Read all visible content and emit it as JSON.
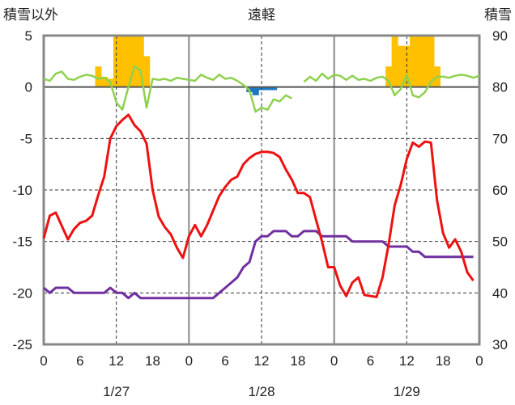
{
  "chart_data": {
    "type": "line",
    "title": "遠軽",
    "left_axis_label": "積雪以外",
    "right_axis_label": "積雪",
    "ylim_left": [
      -25,
      5
    ],
    "yticks_left": [
      5,
      0,
      -5,
      -10,
      -15,
      -20,
      -25
    ],
    "ylim_right": [
      30,
      90
    ],
    "yticks_right": [
      90,
      80,
      70,
      60,
      50,
      40,
      30
    ],
    "xlim_hours": [
      0,
      72
    ],
    "xticks": [
      {
        "h": 0,
        "label": "0"
      },
      {
        "h": 6,
        "label": "6"
      },
      {
        "h": 12,
        "label": "12"
      },
      {
        "h": 18,
        "label": "18"
      },
      {
        "h": 24,
        "label": "0"
      },
      {
        "h": 30,
        "label": "6"
      },
      {
        "h": 36,
        "label": "12"
      },
      {
        "h": 42,
        "label": "18"
      },
      {
        "h": 48,
        "label": "0"
      },
      {
        "h": 54,
        "label": "6"
      },
      {
        "h": 60,
        "label": "12"
      },
      {
        "h": 66,
        "label": "18"
      },
      {
        "h": 72,
        "label": "0"
      }
    ],
    "dates": [
      {
        "h": 12,
        "label": "1/27"
      },
      {
        "h": 36,
        "label": "1/28"
      },
      {
        "h": 60,
        "label": "1/29"
      }
    ],
    "day_lines_hours": [
      24,
      48
    ],
    "noon_lines_hours": [
      12,
      36,
      60
    ],
    "colors": {
      "temperature": "#ee1111",
      "snow_depth": "#7030a0",
      "difference": "#8fd14f",
      "snowfall": "#ffc000",
      "negative_bar": "#1f77c4"
    },
    "temperature": [
      [
        0,
        -14.7
      ],
      [
        1,
        -12.5
      ],
      [
        2,
        -12.2
      ],
      [
        3,
        -13.5
      ],
      [
        4,
        -14.8
      ],
      [
        5,
        -13.8
      ],
      [
        6,
        -13.2
      ],
      [
        7,
        -13
      ],
      [
        8,
        -12.5
      ],
      [
        9,
        -10.5
      ],
      [
        10,
        -8.7
      ],
      [
        11,
        -5
      ],
      [
        12,
        -3.8
      ],
      [
        13,
        -3.2
      ],
      [
        14,
        -2.7
      ],
      [
        15,
        -3.7
      ],
      [
        16,
        -4.3
      ],
      [
        17,
        -5.5
      ],
      [
        18,
        -10
      ],
      [
        19,
        -12.6
      ],
      [
        20,
        -13.6
      ],
      [
        21,
        -14.3
      ],
      [
        22,
        -15.6
      ],
      [
        23,
        -16.6
      ],
      [
        24,
        -14.5
      ],
      [
        25,
        -13.4
      ],
      [
        26,
        -14.5
      ],
      [
        27,
        -13.4
      ],
      [
        28,
        -12
      ],
      [
        29,
        -10.6
      ],
      [
        30,
        -9.7
      ],
      [
        31,
        -9
      ],
      [
        32,
        -8.7
      ],
      [
        33,
        -7.5
      ],
      [
        34,
        -6.9
      ],
      [
        35,
        -6.5
      ],
      [
        36,
        -6.3
      ],
      [
        37,
        -6.3
      ],
      [
        38,
        -6.4
      ],
      [
        39,
        -6.8
      ],
      [
        40,
        -8
      ],
      [
        41,
        -9
      ],
      [
        42,
        -10.3
      ],
      [
        43,
        -10.3
      ],
      [
        44,
        -10.7
      ],
      [
        45,
        -12.9
      ],
      [
        46,
        -15
      ],
      [
        47,
        -17.5
      ],
      [
        48,
        -17.5
      ],
      [
        49,
        -19.3
      ],
      [
        50,
        -20.3
      ],
      [
        51,
        -19
      ],
      [
        52,
        -18.5
      ],
      [
        53,
        -20.2
      ],
      [
        54,
        -20.3
      ],
      [
        55,
        -20.4
      ],
      [
        56,
        -18.5
      ],
      [
        57,
        -15.3
      ],
      [
        58,
        -11.5
      ],
      [
        59,
        -9.5
      ],
      [
        60,
        -7
      ],
      [
        61,
        -5.4
      ],
      [
        62,
        -5.8
      ],
      [
        63,
        -5.3
      ],
      [
        64,
        -5.4
      ],
      [
        65,
        -11
      ],
      [
        66,
        -14.2
      ],
      [
        67,
        -15.6
      ],
      [
        68,
        -14.8
      ],
      [
        69,
        -16
      ],
      [
        70,
        -18
      ],
      [
        71,
        -18.8
      ]
    ],
    "snow_depth": [
      [
        0,
        41
      ],
      [
        1,
        40
      ],
      [
        2,
        41
      ],
      [
        3,
        41
      ],
      [
        4,
        41
      ],
      [
        5,
        40
      ],
      [
        6,
        40
      ],
      [
        7,
        40
      ],
      [
        8,
        40
      ],
      [
        9,
        40
      ],
      [
        10,
        40
      ],
      [
        11,
        41
      ],
      [
        12,
        40
      ],
      [
        13,
        40
      ],
      [
        14,
        39
      ],
      [
        15,
        40
      ],
      [
        16,
        39
      ],
      [
        17,
        39
      ],
      [
        18,
        39
      ],
      [
        19,
        39
      ],
      [
        20,
        39
      ],
      [
        21,
        39
      ],
      [
        22,
        39
      ],
      [
        23,
        39
      ],
      [
        24,
        39
      ],
      [
        25,
        39
      ],
      [
        26,
        39
      ],
      [
        27,
        39
      ],
      [
        28,
        39
      ],
      [
        29,
        40
      ],
      [
        30,
        41
      ],
      [
        31,
        42
      ],
      [
        32,
        43
      ],
      [
        33,
        45
      ],
      [
        34,
        46
      ],
      [
        35,
        50
      ],
      [
        36,
        51
      ],
      [
        37,
        51
      ],
      [
        38,
        52
      ],
      [
        39,
        52
      ],
      [
        40,
        52
      ],
      [
        41,
        51
      ],
      [
        42,
        51
      ],
      [
        43,
        52
      ],
      [
        44,
        52
      ],
      [
        45,
        52
      ],
      [
        46,
        51
      ],
      [
        47,
        51
      ],
      [
        48,
        51
      ],
      [
        49,
        51
      ],
      [
        50,
        51
      ],
      [
        51,
        50
      ],
      [
        52,
        50
      ],
      [
        53,
        50
      ],
      [
        54,
        50
      ],
      [
        55,
        50
      ],
      [
        56,
        50
      ],
      [
        57,
        49
      ],
      [
        58,
        49
      ],
      [
        59,
        49
      ],
      [
        60,
        49
      ],
      [
        61,
        48
      ],
      [
        62,
        48
      ],
      [
        63,
        47
      ],
      [
        64,
        47
      ],
      [
        65,
        47
      ],
      [
        66,
        47
      ],
      [
        67,
        47
      ],
      [
        68,
        47
      ],
      [
        69,
        47
      ],
      [
        70,
        47
      ],
      [
        71,
        47
      ]
    ],
    "difference": [
      [
        0,
        0.8
      ],
      [
        1,
        0.6
      ],
      [
        2,
        1.3
      ],
      [
        3,
        1.5
      ],
      [
        4,
        0.8
      ],
      [
        5,
        0.7
      ],
      [
        6,
        1
      ],
      [
        7,
        1.2
      ],
      [
        8,
        1.1
      ],
      [
        9,
        0.8
      ],
      [
        10,
        0.9
      ],
      [
        11,
        0.5
      ],
      [
        12,
        -1.5
      ],
      [
        13,
        -2.2
      ],
      [
        14,
        0
      ],
      [
        15,
        2
      ],
      [
        16,
        1.6
      ],
      [
        17,
        -2
      ],
      [
        18,
        0.8
      ],
      [
        19,
        0.7
      ],
      [
        20,
        0.8
      ],
      [
        21,
        0.6
      ],
      [
        22,
        0.9
      ],
      [
        23,
        0.8
      ],
      [
        24,
        0.7
      ],
      [
        25,
        0.6
      ],
      [
        26,
        1.2
      ],
      [
        27,
        0.9
      ],
      [
        28,
        0.7
      ],
      [
        29,
        1.2
      ],
      [
        30,
        0.8
      ],
      [
        31,
        0.9
      ],
      [
        32,
        0.6
      ],
      [
        33,
        0.2
      ],
      [
        34,
        -0.3
      ],
      [
        35,
        -2.4
      ],
      [
        36,
        -2
      ],
      [
        37,
        -2.2
      ],
      [
        38,
        -1.2
      ],
      [
        39,
        -1.4
      ],
      [
        40,
        -0.8
      ],
      [
        41,
        -1.1
      ],
      [
        42,
        null
      ],
      [
        43,
        0.5
      ],
      [
        44,
        1
      ],
      [
        45,
        0.6
      ],
      [
        46,
        1.3
      ],
      [
        47,
        0.8
      ],
      [
        48,
        1.2
      ],
      [
        49,
        1.1
      ],
      [
        50,
        0.7
      ],
      [
        51,
        1.1
      ],
      [
        52,
        0.7
      ],
      [
        53,
        0.8
      ],
      [
        54,
        0.6
      ],
      [
        55,
        0.9
      ],
      [
        56,
        1
      ],
      [
        57,
        0.6
      ],
      [
        58,
        -0.8
      ],
      [
        59,
        -0.2
      ],
      [
        60,
        1.2
      ],
      [
        61,
        -0.8
      ],
      [
        62,
        -1
      ],
      [
        63,
        -0.5
      ],
      [
        64,
        0.5
      ],
      [
        65,
        1
      ],
      [
        66,
        1
      ],
      [
        67,
        0.9
      ],
      [
        68,
        1.1
      ],
      [
        69,
        1.2
      ],
      [
        70,
        1.1
      ],
      [
        71,
        0.9
      ],
      [
        72,
        1.1
      ]
    ],
    "snowfall_bars": [
      [
        9,
        2
      ],
      [
        10,
        1
      ],
      [
        11,
        0.8
      ],
      [
        12,
        5
      ],
      [
        13,
        5
      ],
      [
        14,
        5
      ],
      [
        15,
        5
      ],
      [
        16,
        5
      ],
      [
        17,
        3
      ],
      [
        57,
        2
      ],
      [
        58,
        5
      ],
      [
        59,
        4
      ],
      [
        60,
        4
      ],
      [
        61,
        5
      ],
      [
        62,
        5
      ],
      [
        63,
        5
      ],
      [
        64,
        5
      ],
      [
        65,
        2
      ]
    ],
    "negative_bars": [
      [
        34,
        -0.5
      ],
      [
        35,
        -0.8
      ],
      [
        36,
        -0.3
      ],
      [
        37,
        -0.3
      ],
      [
        38,
        -0.3
      ]
    ]
  }
}
